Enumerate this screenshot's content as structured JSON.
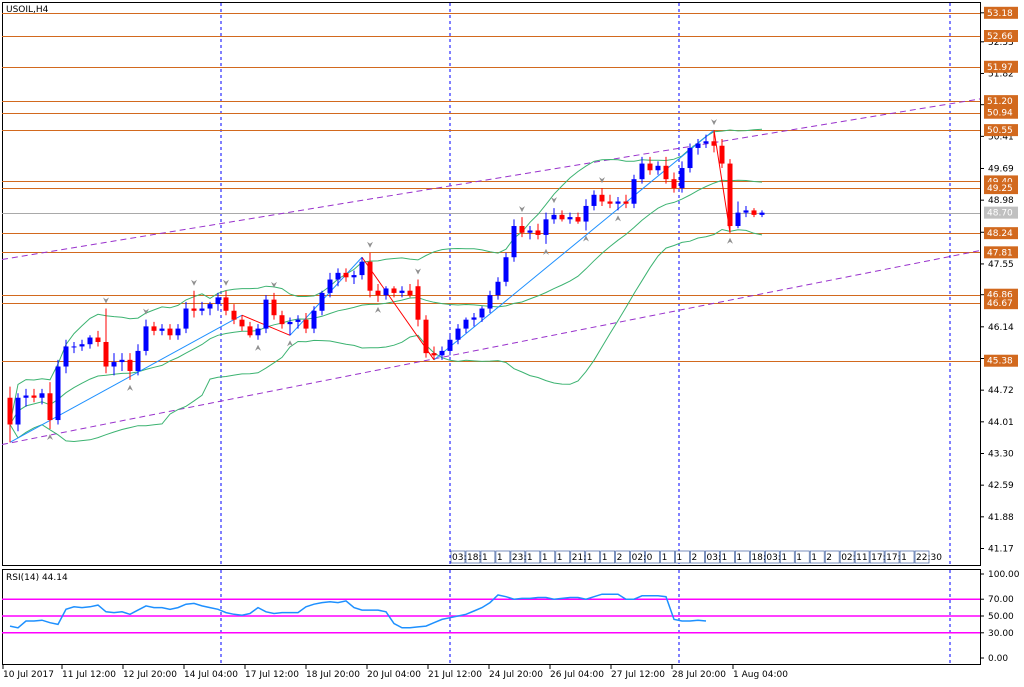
{
  "window": {
    "symbol_label": "USOIL,H4",
    "rsi_label": "RSI(14) 44.14"
  },
  "colors": {
    "background": "#ffffff",
    "frame": "#000000",
    "bull_candle": "#0000ff",
    "bear_candle": "#ff0000",
    "level_line": "#d2691e",
    "level_tag_bg": "#d2691e",
    "bollinger": "#3cb371",
    "zigzag_up": "#1e90ff",
    "zigzag_down": "#ff0000",
    "channel": "#9932cc",
    "current_price_line": "#a9a9a9",
    "rsi_line": "#1e90ff",
    "rsi_level": "#ff00ff",
    "separator": "#0000ff"
  },
  "chart_data": [
    {
      "type": "candlestick",
      "instrument": "USOIL",
      "timeframe": "H4",
      "ylim": [
        40.8,
        53.4
      ],
      "y_ticks": [
        "53.18",
        "52.53",
        "51.82",
        "51.12",
        "50.41",
        "49.69",
        "48.98",
        "48.26",
        "47.55",
        "46.86",
        "46.14",
        "45.43",
        "44.72",
        "44.01",
        "43.30",
        "42.59",
        "41.88",
        "41.17"
      ],
      "x_tick_labels": [
        "10 Jul 2017",
        "11 Jul 12:00",
        "12 Jul 20:00",
        "14 Jul 04:00",
        "17 Jul 12:00",
        "18 Jul 20:00",
        "20 Jul 04:00",
        "21 Jul 12:00",
        "24 Jul 20:00",
        "26 Jul 04:00",
        "27 Jul 12:00",
        "28 Jul 20:00",
        "1 Aug 04:00"
      ],
      "week_separators": [
        "10 Jul 2017",
        "17 Jul",
        "24 Jul",
        "31 Jul"
      ],
      "horizontal_levels": [
        "53.18",
        "52.66",
        "51.97",
        "51.20",
        "50.94",
        "50.55",
        "49.40",
        "49.25",
        "48.70",
        "48.24",
        "47.81",
        "46.86",
        "46.67",
        "45.38"
      ],
      "current_price": 48.7,
      "time_markers": [
        "03:00",
        "18:30",
        "1",
        "1",
        "23:30",
        "1",
        "1",
        "1",
        "21:00",
        "1",
        "1",
        "2",
        "02:",
        "0",
        "1",
        "1",
        "2",
        "03:",
        "1",
        "1",
        "18:",
        "03:",
        "1",
        "1",
        "1",
        "2",
        "02:",
        "11",
        "17:30",
        "17:30",
        "1",
        "22:30"
      ],
      "candles": [
        {
          "o": 44.55,
          "h": 44.8,
          "l": 43.55,
          "c": 43.95
        },
        {
          "o": 43.95,
          "h": 44.65,
          "l": 43.8,
          "c": 44.55
        },
        {
          "o": 44.55,
          "h": 44.75,
          "l": 44.35,
          "c": 44.6
        },
        {
          "o": 44.6,
          "h": 44.75,
          "l": 44.45,
          "c": 44.55
        },
        {
          "o": 44.55,
          "h": 44.75,
          "l": 44.4,
          "c": 44.65
        },
        {
          "o": 44.65,
          "h": 44.9,
          "l": 43.85,
          "c": 44.05
        },
        {
          "o": 44.05,
          "h": 45.4,
          "l": 43.95,
          "c": 45.25
        },
        {
          "o": 45.25,
          "h": 45.85,
          "l": 45.1,
          "c": 45.7
        },
        {
          "o": 45.7,
          "h": 45.8,
          "l": 45.55,
          "c": 45.7
        },
        {
          "o": 45.7,
          "h": 45.85,
          "l": 45.6,
          "c": 45.75
        },
        {
          "o": 45.75,
          "h": 45.95,
          "l": 45.65,
          "c": 45.9
        },
        {
          "o": 45.9,
          "h": 46.05,
          "l": 45.7,
          "c": 45.8
        },
        {
          "o": 45.8,
          "h": 46.55,
          "l": 45.1,
          "c": 45.25
        },
        {
          "o": 45.25,
          "h": 45.55,
          "l": 45.05,
          "c": 45.35
        },
        {
          "o": 45.35,
          "h": 45.55,
          "l": 45.15,
          "c": 45.4
        },
        {
          "o": 45.4,
          "h": 45.55,
          "l": 44.95,
          "c": 45.15
        },
        {
          "o": 45.15,
          "h": 45.75,
          "l": 45.05,
          "c": 45.6
        },
        {
          "o": 45.6,
          "h": 46.3,
          "l": 45.5,
          "c": 46.15
        },
        {
          "o": 46.15,
          "h": 46.25,
          "l": 45.95,
          "c": 46.05
        },
        {
          "o": 46.05,
          "h": 46.2,
          "l": 45.95,
          "c": 46.1
        },
        {
          "o": 46.1,
          "h": 46.2,
          "l": 45.85,
          "c": 45.95
        },
        {
          "o": 45.95,
          "h": 46.2,
          "l": 45.85,
          "c": 46.1
        },
        {
          "o": 46.1,
          "h": 46.7,
          "l": 46.0,
          "c": 46.55
        },
        {
          "o": 46.55,
          "h": 46.95,
          "l": 46.35,
          "c": 46.5
        },
        {
          "o": 46.5,
          "h": 46.7,
          "l": 46.4,
          "c": 46.55
        },
        {
          "o": 46.55,
          "h": 46.7,
          "l": 46.4,
          "c": 46.65
        },
        {
          "o": 46.65,
          "h": 46.9,
          "l": 46.5,
          "c": 46.8
        },
        {
          "o": 46.8,
          "h": 46.95,
          "l": 46.4,
          "c": 46.5
        },
        {
          "o": 46.5,
          "h": 46.65,
          "l": 46.2,
          "c": 46.3
        },
        {
          "o": 46.3,
          "h": 46.4,
          "l": 46.05,
          "c": 46.15
        },
        {
          "o": 46.15,
          "h": 46.25,
          "l": 45.9,
          "c": 45.95
        },
        {
          "o": 45.95,
          "h": 46.2,
          "l": 45.85,
          "c": 46.1
        },
        {
          "o": 46.1,
          "h": 46.85,
          "l": 46.0,
          "c": 46.75
        },
        {
          "o": 46.75,
          "h": 46.9,
          "l": 46.3,
          "c": 46.4
        },
        {
          "o": 46.4,
          "h": 46.5,
          "l": 46.1,
          "c": 46.2
        },
        {
          "o": 46.2,
          "h": 46.35,
          "l": 45.95,
          "c": 46.25
        },
        {
          "o": 46.25,
          "h": 46.4,
          "l": 46.1,
          "c": 46.3
        },
        {
          "o": 46.3,
          "h": 46.45,
          "l": 46.0,
          "c": 46.1
        },
        {
          "o": 46.1,
          "h": 46.6,
          "l": 46.0,
          "c": 46.5
        },
        {
          "o": 46.5,
          "h": 46.95,
          "l": 46.4,
          "c": 46.9
        },
        {
          "o": 46.9,
          "h": 47.35,
          "l": 46.8,
          "c": 47.2
        },
        {
          "o": 47.2,
          "h": 47.45,
          "l": 47.05,
          "c": 47.35
        },
        {
          "o": 47.35,
          "h": 47.45,
          "l": 47.15,
          "c": 47.25
        },
        {
          "o": 47.25,
          "h": 47.4,
          "l": 47.1,
          "c": 47.3
        },
        {
          "o": 47.3,
          "h": 47.7,
          "l": 47.2,
          "c": 47.6
        },
        {
          "o": 47.6,
          "h": 47.8,
          "l": 46.8,
          "c": 46.95
        },
        {
          "o": 46.95,
          "h": 47.1,
          "l": 46.7,
          "c": 46.85
        },
        {
          "o": 46.85,
          "h": 47.05,
          "l": 46.75,
          "c": 47.0
        },
        {
          "o": 47.0,
          "h": 47.05,
          "l": 46.8,
          "c": 46.9
        },
        {
          "o": 46.9,
          "h": 47.05,
          "l": 46.8,
          "c": 46.95
        },
        {
          "o": 46.95,
          "h": 47.1,
          "l": 46.8,
          "c": 46.85
        },
        {
          "o": 47.05,
          "h": 47.2,
          "l": 46.15,
          "c": 46.3
        },
        {
          "o": 46.3,
          "h": 46.4,
          "l": 45.45,
          "c": 45.55
        },
        {
          "o": 45.55,
          "h": 45.7,
          "l": 45.4,
          "c": 45.5
        },
        {
          "o": 45.5,
          "h": 45.7,
          "l": 45.4,
          "c": 45.6
        },
        {
          "o": 45.6,
          "h": 45.95,
          "l": 45.5,
          "c": 45.85
        },
        {
          "o": 45.85,
          "h": 46.2,
          "l": 45.75,
          "c": 46.1
        },
        {
          "o": 46.1,
          "h": 46.35,
          "l": 46.0,
          "c": 46.3
        },
        {
          "o": 46.3,
          "h": 46.45,
          "l": 46.15,
          "c": 46.35
        },
        {
          "o": 46.35,
          "h": 46.6,
          "l": 46.25,
          "c": 46.55
        },
        {
          "o": 46.55,
          "h": 46.95,
          "l": 46.45,
          "c": 46.85
        },
        {
          "o": 46.85,
          "h": 47.25,
          "l": 46.75,
          "c": 47.15
        },
        {
          "o": 47.15,
          "h": 47.8,
          "l": 47.05,
          "c": 47.7
        },
        {
          "o": 47.7,
          "h": 48.55,
          "l": 47.6,
          "c": 48.4
        },
        {
          "o": 48.4,
          "h": 48.6,
          "l": 48.15,
          "c": 48.25
        },
        {
          "o": 48.25,
          "h": 48.4,
          "l": 48.1,
          "c": 48.3
        },
        {
          "o": 48.3,
          "h": 48.45,
          "l": 48.1,
          "c": 48.2
        },
        {
          "o": 48.2,
          "h": 48.7,
          "l": 48.0,
          "c": 48.55
        },
        {
          "o": 48.55,
          "h": 48.8,
          "l": 48.45,
          "c": 48.65
        },
        {
          "o": 48.65,
          "h": 48.75,
          "l": 48.5,
          "c": 48.55
        },
        {
          "o": 48.55,
          "h": 48.7,
          "l": 48.45,
          "c": 48.6
        },
        {
          "o": 48.6,
          "h": 48.7,
          "l": 48.45,
          "c": 48.5
        },
        {
          "o": 48.5,
          "h": 49.0,
          "l": 48.3,
          "c": 48.85
        },
        {
          "o": 48.85,
          "h": 49.2,
          "l": 48.75,
          "c": 49.1
        },
        {
          "o": 49.1,
          "h": 49.25,
          "l": 48.85,
          "c": 48.95
        },
        {
          "o": 48.95,
          "h": 49.1,
          "l": 48.8,
          "c": 48.9
        },
        {
          "o": 48.9,
          "h": 49.05,
          "l": 48.75,
          "c": 48.95
        },
        {
          "o": 48.95,
          "h": 49.1,
          "l": 48.8,
          "c": 48.9
        },
        {
          "o": 48.9,
          "h": 49.55,
          "l": 48.8,
          "c": 49.45
        },
        {
          "o": 49.45,
          "h": 49.95,
          "l": 49.35,
          "c": 49.8
        },
        {
          "o": 49.8,
          "h": 49.95,
          "l": 49.55,
          "c": 49.65
        },
        {
          "o": 49.65,
          "h": 49.85,
          "l": 49.55,
          "c": 49.75
        },
        {
          "o": 49.75,
          "h": 49.95,
          "l": 49.35,
          "c": 49.45
        },
        {
          "o": 49.45,
          "h": 49.6,
          "l": 49.15,
          "c": 49.25
        },
        {
          "o": 49.25,
          "h": 49.85,
          "l": 49.15,
          "c": 49.7
        },
        {
          "o": 49.7,
          "h": 50.25,
          "l": 49.6,
          "c": 50.15
        },
        {
          "o": 50.15,
          "h": 50.35,
          "l": 50.0,
          "c": 50.25
        },
        {
          "o": 50.25,
          "h": 50.45,
          "l": 50.15,
          "c": 50.3
        },
        {
          "o": 50.3,
          "h": 50.55,
          "l": 50.05,
          "c": 50.2
        },
        {
          "o": 50.2,
          "h": 50.35,
          "l": 49.7,
          "c": 49.8
        },
        {
          "o": 49.8,
          "h": 49.9,
          "l": 48.25,
          "c": 48.4
        },
        {
          "o": 48.4,
          "h": 48.95,
          "l": 48.35,
          "c": 48.7
        },
        {
          "o": 48.7,
          "h": 48.85,
          "l": 48.6,
          "c": 48.75
        },
        {
          "o": 48.75,
          "h": 48.8,
          "l": 48.6,
          "c": 48.65
        },
        {
          "o": 48.65,
          "h": 48.75,
          "l": 48.6,
          "c": 48.7
        }
      ],
      "indicators": [
        "Bollinger Bands (20)",
        "ZigZag",
        "Fractals",
        "Price channel"
      ]
    },
    {
      "type": "line",
      "name": "RSI(14)",
      "ylim": [
        0,
        100
      ],
      "y_ticks": [
        "100.00",
        "70.00",
        "50.00",
        "30.00",
        "0.00"
      ],
      "levels": [
        70,
        50,
        30
      ],
      "last_value": 44.14,
      "values": [
        38,
        36,
        44,
        44,
        45,
        42,
        40,
        58,
        61,
        60,
        61,
        63,
        55,
        54,
        55,
        52,
        57,
        62,
        60,
        60,
        58,
        60,
        64,
        65,
        62,
        60,
        58,
        54,
        52,
        51,
        53,
        60,
        55,
        53,
        54,
        54,
        54,
        61,
        64,
        66,
        67,
        66,
        68,
        60,
        57,
        57,
        57,
        55,
        41,
        36,
        36,
        37,
        38,
        42,
        46,
        48,
        50,
        52,
        56,
        60,
        66,
        75,
        73,
        70,
        71,
        71,
        72,
        72,
        70,
        71,
        72,
        72,
        70,
        73,
        76,
        76,
        76,
        70,
        70,
        74,
        74,
        74,
        73,
        46,
        44,
        44,
        45,
        44
      ]
    }
  ]
}
